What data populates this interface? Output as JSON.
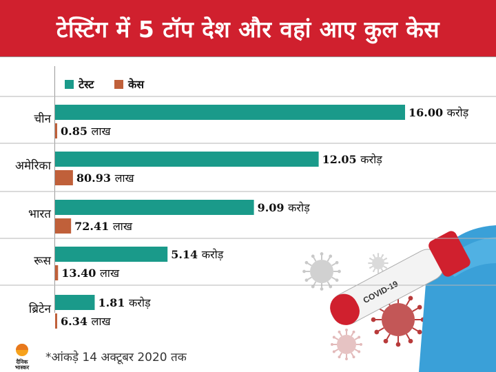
{
  "header": {
    "title": "टेस्टिंग में 5 टॉप देश और वहां आए कुल केस"
  },
  "chart_data": {
    "type": "bar",
    "orientation": "horizontal",
    "categories": [
      "चीन",
      "अमेरिका",
      "भारत",
      "रूस",
      "ब्रिटेन"
    ],
    "series": [
      {
        "name": "टेस्ट",
        "color": "#1a9a8a",
        "unit": "करोड़",
        "values": [
          16.0,
          12.05,
          9.09,
          5.14,
          1.81
        ],
        "labels": [
          "16.00",
          "12.05",
          "9.09",
          "5.14",
          "1.81"
        ]
      },
      {
        "name": "केस",
        "color": "#c0603a",
        "unit": "लाख",
        "values": [
          0.85,
          80.93,
          72.41,
          13.4,
          6.34
        ],
        "labels": [
          "0.85",
          "80.93",
          "72.41",
          "13.40",
          "6.34"
        ]
      }
    ],
    "legend_position": "top-left"
  },
  "footnote": "*आंकड़े 14 अक्टूबर 2020 तक",
  "logo": {
    "line1": "दैनिक",
    "line2": "भास्कर"
  },
  "illustration": {
    "tube_label": "COVID-19"
  }
}
